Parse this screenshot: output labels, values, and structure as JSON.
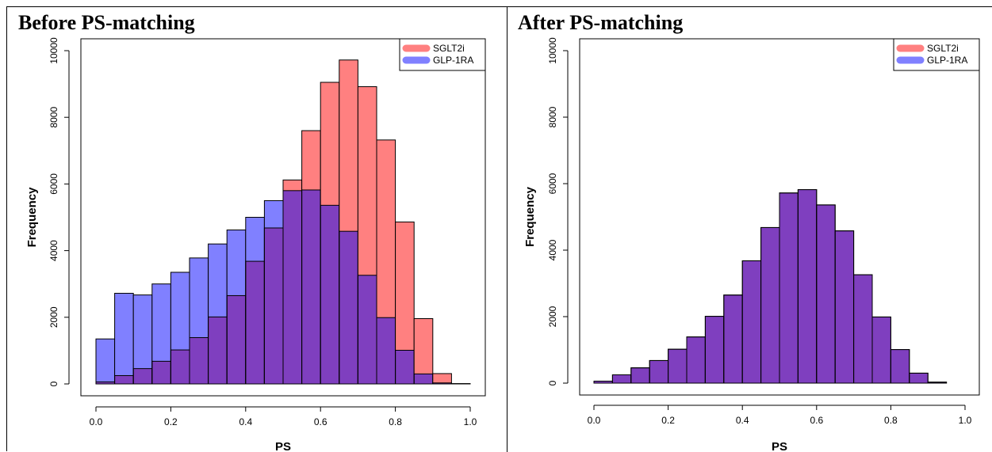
{
  "panels": {
    "before_title": "Before PS-matching",
    "after_title": "After PS-matching"
  },
  "chart_data": [
    {
      "type": "bar",
      "title": "Before PS-matching",
      "xlabel": "PS",
      "ylabel": "Frequency",
      "xlim": [
        0,
        1
      ],
      "ylim": [
        0,
        10000
      ],
      "xticks": [
        "0.0",
        "0.2",
        "0.4",
        "0.6",
        "0.8",
        "1.0"
      ],
      "yticks": [
        "0",
        "2000",
        "4000",
        "6000",
        "8000",
        "10000"
      ],
      "bin_edges": [
        0,
        0.05,
        0.1,
        0.15,
        0.2,
        0.25,
        0.3,
        0.35,
        0.4,
        0.45,
        0.5,
        0.55,
        0.6,
        0.65,
        0.7,
        0.75,
        0.8,
        0.85,
        0.9,
        0.95,
        1.0
      ],
      "legend_position": "top-right",
      "series": [
        {
          "name": "SGLT2i",
          "color": "#ff8080",
          "values": [
            60,
            250,
            460,
            680,
            1020,
            1390,
            2010,
            2650,
            3680,
            4680,
            6120,
            7600,
            9050,
            9720,
            8920,
            7320,
            4860,
            1960,
            310,
            10
          ]
        },
        {
          "name": "GLP-1RA",
          "color": "#8080ff",
          "values": [
            1350,
            2720,
            2670,
            3000,
            3350,
            3780,
            4200,
            4620,
            5000,
            5500,
            5800,
            5820,
            5360,
            4580,
            3260,
            1990,
            1010,
            300,
            30,
            5
          ]
        }
      ],
      "overlap_color": "#7f3fbf"
    },
    {
      "type": "bar",
      "title": "After PS-matching",
      "xlabel": "PS",
      "ylabel": "Frequency",
      "xlim": [
        0,
        1
      ],
      "ylim": [
        0,
        10000
      ],
      "xticks": [
        "0.0",
        "0.2",
        "0.4",
        "0.6",
        "0.8",
        "1.0"
      ],
      "yticks": [
        "0",
        "2000",
        "4000",
        "6000",
        "8000",
        "10000"
      ],
      "bin_edges": [
        0,
        0.05,
        0.1,
        0.15,
        0.2,
        0.25,
        0.3,
        0.35,
        0.4,
        0.45,
        0.5,
        0.55,
        0.6,
        0.65,
        0.7,
        0.75,
        0.8,
        0.85,
        0.9,
        0.95
      ],
      "legend_position": "top-right",
      "series": [
        {
          "name": "SGLT2i",
          "color": "#ff8080",
          "values": [
            60,
            250,
            460,
            680,
            1020,
            1390,
            2010,
            2650,
            3680,
            4680,
            5720,
            5820,
            5360,
            4580,
            3260,
            1990,
            1010,
            300,
            30
          ]
        },
        {
          "name": "GLP-1RA",
          "color": "#8080ff",
          "values": [
            60,
            250,
            460,
            680,
            1020,
            1390,
            2010,
            2650,
            3680,
            4680,
            5720,
            5820,
            5360,
            4580,
            3260,
            1990,
            1010,
            300,
            30
          ]
        }
      ],
      "overlap_color": "#7f3fbf"
    }
  ]
}
